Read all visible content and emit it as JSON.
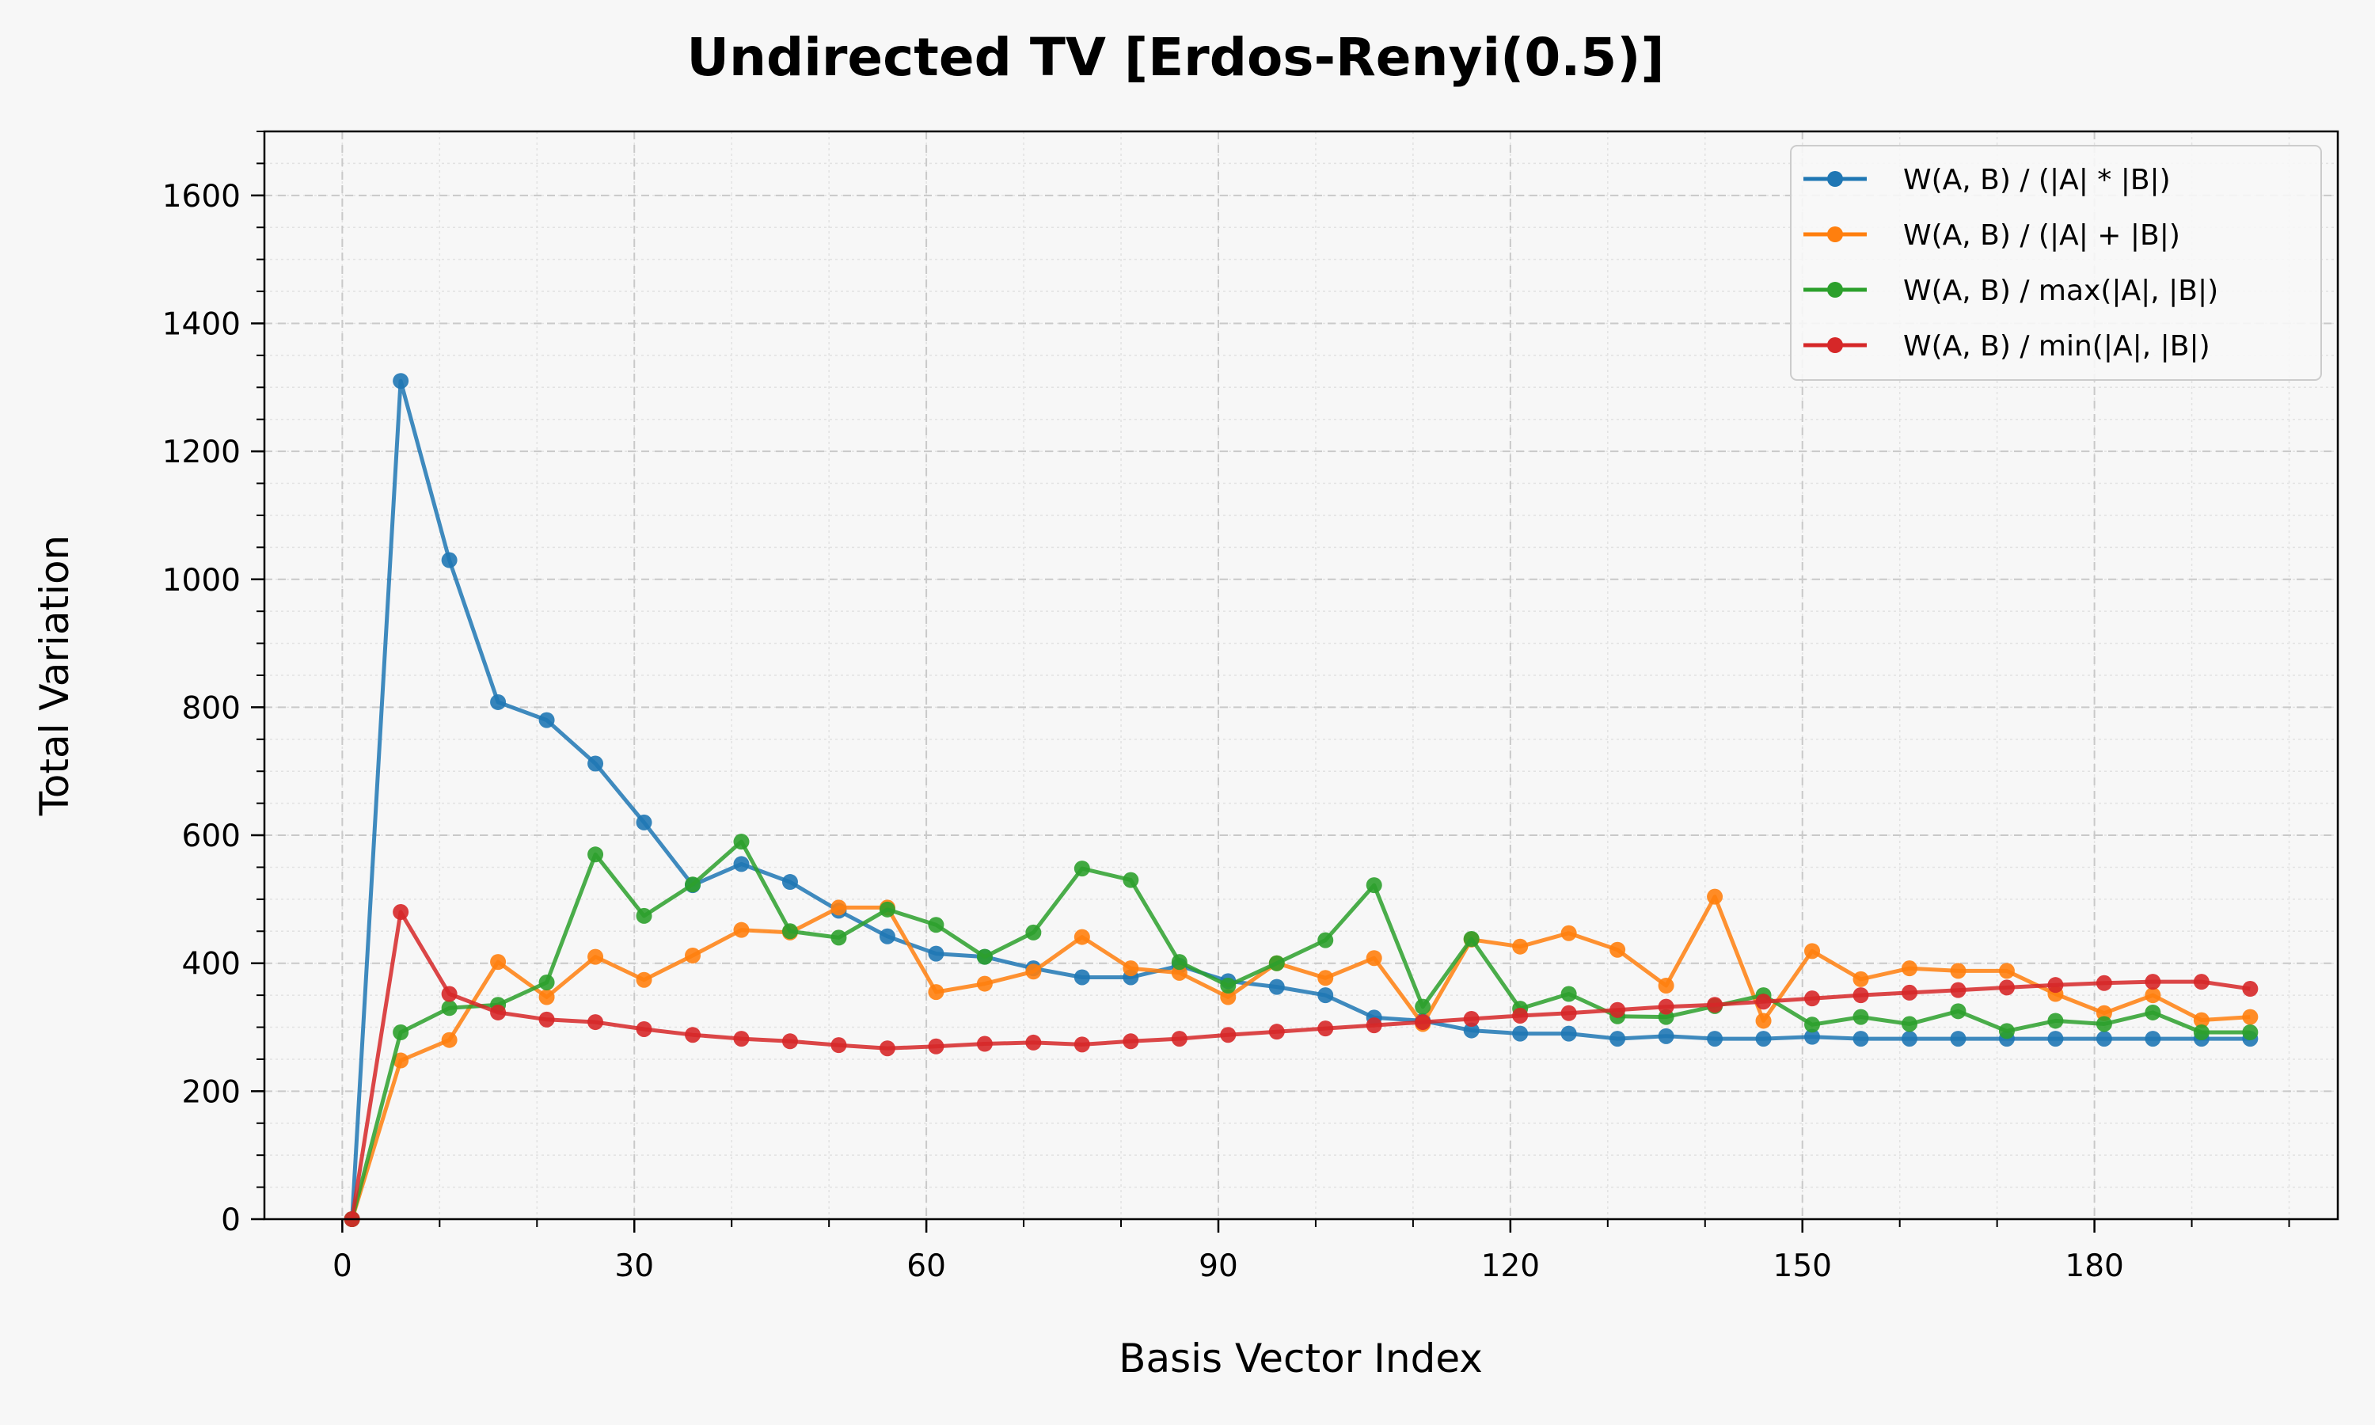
{
  "chart_data": {
    "type": "line",
    "title": "Undirected TV [Erdos-Renyi(0.5)]",
    "xlabel": "Basis Vector Index",
    "ylabel": "Total Variation",
    "xlim": [
      -8,
      205
    ],
    "ylim": [
      0,
      1700
    ],
    "x_ticks": [
      0,
      30,
      60,
      90,
      120,
      150,
      180
    ],
    "y_ticks": [
      0,
      200,
      400,
      600,
      800,
      1000,
      1200,
      1400,
      1600
    ],
    "grid": true,
    "legend_position": "top-right",
    "x": [
      1,
      6,
      11,
      16,
      21,
      26,
      31,
      36,
      41,
      46,
      51,
      56,
      61,
      66,
      71,
      76,
      81,
      86,
      91,
      96,
      101,
      106,
      111,
      116,
      121,
      126,
      131,
      136,
      141,
      146,
      151,
      156,
      161,
      166,
      171,
      176,
      181,
      186,
      191,
      196
    ],
    "series": [
      {
        "name": "W(A, B) / (|A| * |B|)",
        "color": "#1f77b4",
        "values": [
          0,
          1310,
          1030,
          808,
          780,
          712,
          620,
          522,
          555,
          527,
          482,
          442,
          415,
          410,
          392,
          378,
          378,
          396,
          372,
          363,
          350,
          315,
          310,
          295,
          290,
          290,
          282,
          286,
          282,
          282,
          285,
          282,
          282,
          282,
          282,
          282,
          282,
          282,
          282,
          282
        ]
      },
      {
        "name": "W(A, B) / (|A| + |B|)",
        "color": "#ff7f0e",
        "values": [
          0,
          248,
          280,
          402,
          347,
          410,
          374,
          412,
          452,
          448,
          487,
          487,
          355,
          368,
          387,
          441,
          392,
          385,
          347,
          400,
          377,
          408,
          305,
          437,
          426,
          447,
          421,
          365,
          504,
          310,
          419,
          375,
          392,
          388,
          388,
          352,
          322,
          350,
          311,
          316
        ]
      },
      {
        "name": "W(A, B) / max(|A|, |B|)",
        "color": "#2ca02c",
        "values": [
          0,
          292,
          330,
          335,
          370,
          570,
          474,
          523,
          590,
          450,
          440,
          484,
          460,
          410,
          448,
          548,
          530,
          402,
          365,
          400,
          436,
          522,
          332,
          438,
          329,
          352,
          317,
          316,
          333,
          350,
          304,
          316,
          305,
          325,
          294,
          310,
          305,
          323,
          292,
          292
        ]
      },
      {
        "name": "W(A, B) / min(|A|, |B|)",
        "color": "#d62728",
        "values": [
          0,
          480,
          352,
          323,
          312,
          308,
          297,
          288,
          282,
          278,
          272,
          267,
          270,
          274,
          276,
          273,
          278,
          282,
          288,
          293,
          298,
          303,
          308,
          313,
          318,
          322,
          327,
          332,
          335,
          340,
          345,
          350,
          354,
          358,
          362,
          366,
          369,
          371,
          371,
          360
        ]
      }
    ]
  }
}
